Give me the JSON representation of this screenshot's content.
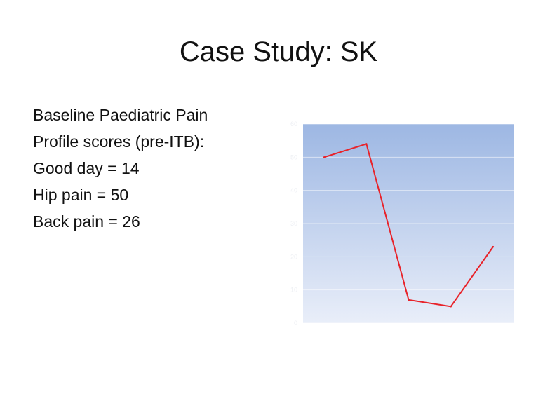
{
  "slide": {
    "title": "Case Study: SK",
    "bullets": [
      "Baseline Paediatric Pain",
      "Profile scores (pre-ITB):",
      "Good day = 14",
      "Hip pain = 50",
      "Back pain = 26"
    ]
  },
  "chart_data": {
    "type": "line",
    "title": "",
    "xlabel": "",
    "ylabel": "",
    "grid": true,
    "ylim": [
      0,
      60
    ],
    "yticks": [
      0,
      10,
      20,
      30,
      40,
      50,
      60
    ],
    "series": [
      {
        "values": [
          50,
          54,
          7,
          5,
          23
        ],
        "color": "#e8232a"
      }
    ],
    "plot_background": [
      "#9db7e3",
      "#e9eef9"
    ]
  }
}
